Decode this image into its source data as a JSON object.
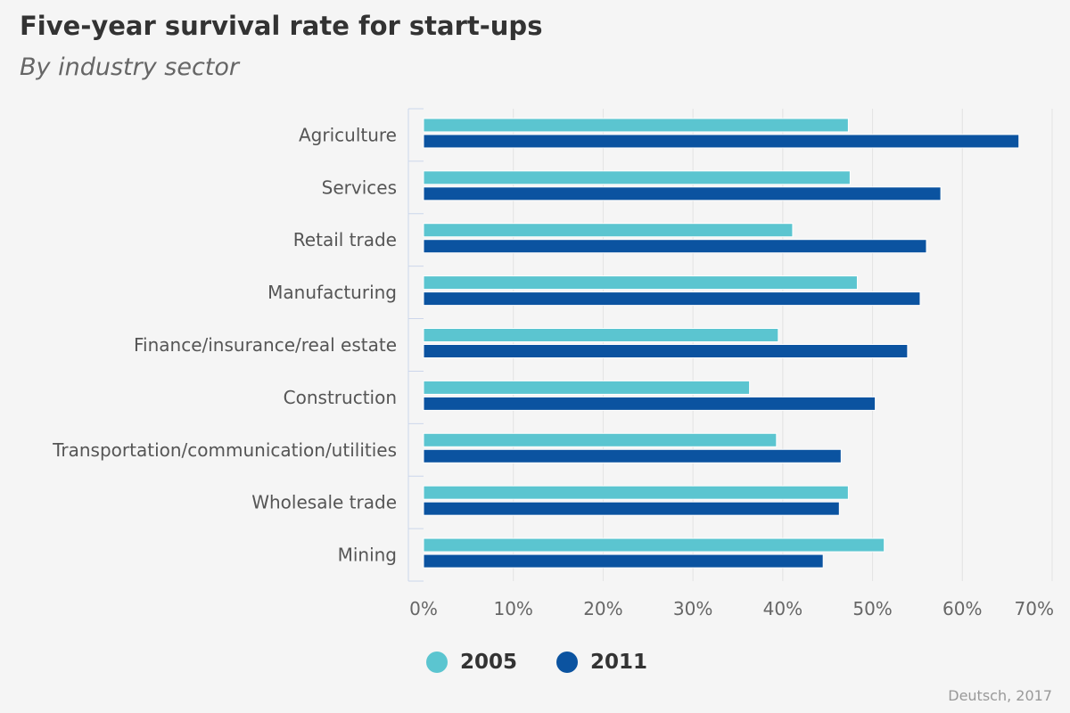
{
  "colors": {
    "series_2005": "#5bc5d0",
    "series_2011": "#0b53a0",
    "grid": "#e2e2e2",
    "axis": "#ccd6eb"
  },
  "chart_data": {
    "type": "bar",
    "orientation": "horizontal",
    "title": "Five-year survival rate for start-ups",
    "subtitle": "By industry sector",
    "categories": [
      "Agriculture",
      "Services",
      "Retail trade",
      "Manufacturing",
      "Finance/insurance/real estate",
      "Construction",
      "Transportation/communication/utilities",
      "Wholesale trade",
      "Mining"
    ],
    "series": [
      {
        "name": "2005",
        "values": [
          47.3,
          47.5,
          41.1,
          48.3,
          39.5,
          36.3,
          39.3,
          47.3,
          51.3
        ]
      },
      {
        "name": "2011",
        "values": [
          66.3,
          57.6,
          56.0,
          55.3,
          53.9,
          50.3,
          46.5,
          46.3,
          44.5
        ]
      }
    ],
    "xlim": [
      0,
      70
    ],
    "xticks": [
      "0%",
      "10%",
      "20%",
      "30%",
      "40%",
      "50%",
      "60%",
      "70%"
    ],
    "grid": true,
    "legend_position": "bottom"
  },
  "credit": "Deutsch, 2017"
}
